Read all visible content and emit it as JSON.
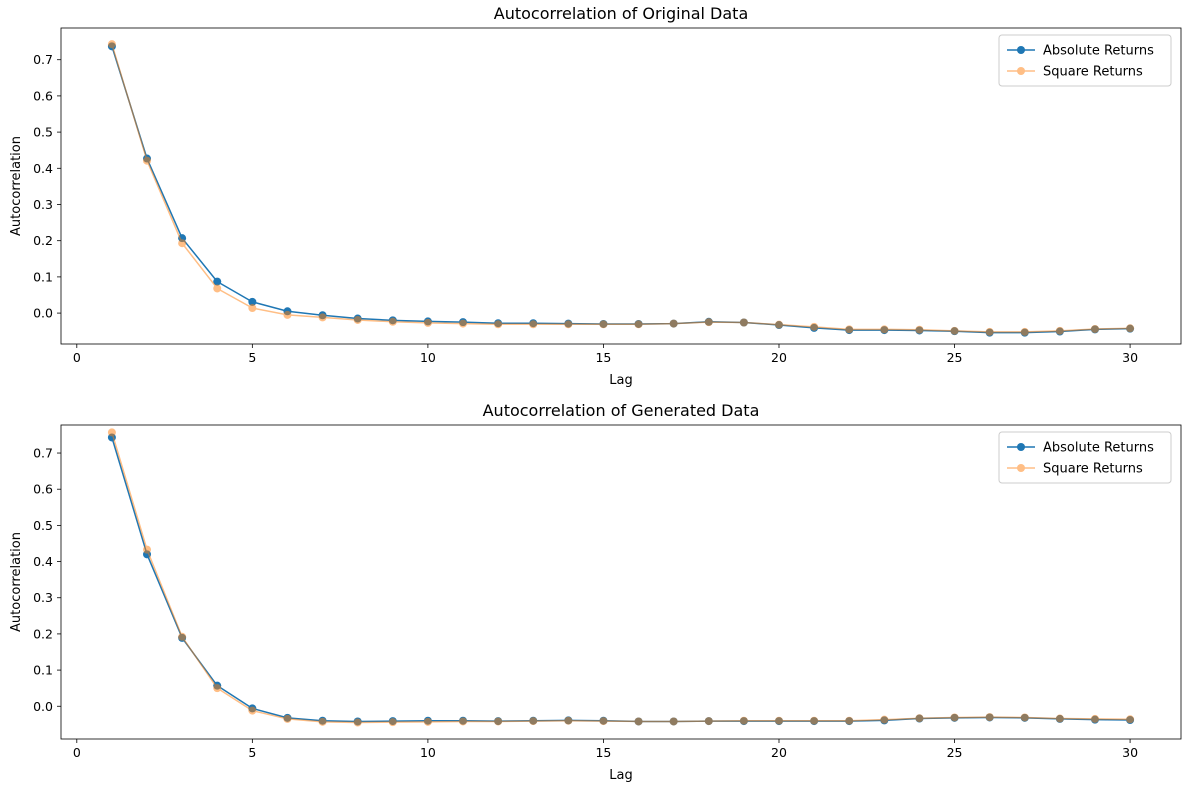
{
  "chart_data": [
    {
      "type": "line",
      "title": "Autocorrelation of Original Data",
      "xlabel": "Lag",
      "ylabel": "Autocorrelation",
      "xlim": [
        -0.45,
        31.45
      ],
      "ylim": [
        -0.0854,
        0.7876
      ],
      "xticks": [
        0,
        5,
        10,
        15,
        20,
        25,
        30
      ],
      "yticks": [
        0.0,
        0.1,
        0.2,
        0.3,
        0.4,
        0.5,
        0.6,
        0.7
      ],
      "ytick_labels": [
        "0.0",
        "0.1",
        "0.2",
        "0.3",
        "0.4",
        "0.5",
        "0.6",
        "0.7"
      ],
      "grid": false,
      "legend": "top-right",
      "x": [
        1,
        2,
        3,
        4,
        5,
        6,
        7,
        8,
        9,
        10,
        11,
        12,
        13,
        14,
        15,
        16,
        17,
        18,
        19,
        20,
        21,
        22,
        23,
        24,
        25,
        26,
        27,
        28,
        29,
        30
      ],
      "series": [
        {
          "name": "Absolute Returns",
          "color": "#1f77b4",
          "alpha": 1.0,
          "values": [
            0.737,
            0.427,
            0.207,
            0.087,
            0.031,
            0.005,
            -0.006,
            -0.015,
            -0.02,
            -0.023,
            -0.025,
            -0.028,
            -0.028,
            -0.029,
            -0.03,
            -0.03,
            -0.029,
            -0.024,
            -0.026,
            -0.033,
            -0.041,
            -0.047,
            -0.047,
            -0.048,
            -0.05,
            -0.054,
            -0.054,
            -0.051,
            -0.045,
            -0.043
          ]
        },
        {
          "name": "Square Returns",
          "color": "#ff7f0e",
          "alpha": 0.5,
          "values": [
            0.743,
            0.421,
            0.193,
            0.068,
            0.014,
            -0.005,
            -0.012,
            -0.019,
            -0.024,
            -0.027,
            -0.029,
            -0.031,
            -0.031,
            -0.031,
            -0.031,
            -0.031,
            -0.029,
            -0.025,
            -0.026,
            -0.032,
            -0.038,
            -0.045,
            -0.045,
            -0.046,
            -0.049,
            -0.052,
            -0.052,
            -0.049,
            -0.044,
            -0.042
          ]
        }
      ]
    },
    {
      "type": "line",
      "title": "Autocorrelation of Generated Data",
      "xlabel": "Lag",
      "ylabel": "Autocorrelation",
      "xlim": [
        -0.45,
        31.45
      ],
      "ylim": [
        -0.0905,
        0.7775
      ],
      "xticks": [
        0,
        5,
        10,
        15,
        20,
        25,
        30
      ],
      "yticks": [
        0.0,
        0.1,
        0.2,
        0.3,
        0.4,
        0.5,
        0.6,
        0.7
      ],
      "ytick_labels": [
        "0.0",
        "0.1",
        "0.2",
        "0.3",
        "0.4",
        "0.5",
        "0.6",
        "0.7"
      ],
      "grid": false,
      "legend": "top-right",
      "x": [
        1,
        2,
        3,
        4,
        5,
        6,
        7,
        8,
        9,
        10,
        11,
        12,
        13,
        14,
        15,
        16,
        17,
        18,
        19,
        20,
        21,
        22,
        23,
        24,
        25,
        26,
        27,
        28,
        29,
        30
      ],
      "series": [
        {
          "name": "Absolute Returns",
          "color": "#1f77b4",
          "alpha": 1.0,
          "values": [
            0.743,
            0.42,
            0.189,
            0.057,
            -0.006,
            -0.032,
            -0.04,
            -0.042,
            -0.041,
            -0.04,
            -0.04,
            -0.041,
            -0.04,
            -0.039,
            -0.04,
            -0.042,
            -0.042,
            -0.041,
            -0.041,
            -0.041,
            -0.041,
            -0.041,
            -0.039,
            -0.034,
            -0.032,
            -0.031,
            -0.032,
            -0.035,
            -0.037,
            -0.038
          ]
        },
        {
          "name": "Square Returns",
          "color": "#ff7f0e",
          "alpha": 0.5,
          "values": [
            0.757,
            0.433,
            0.192,
            0.05,
            -0.012,
            -0.035,
            -0.043,
            -0.045,
            -0.044,
            -0.043,
            -0.042,
            -0.042,
            -0.041,
            -0.04,
            -0.041,
            -0.042,
            -0.042,
            -0.041,
            -0.04,
            -0.04,
            -0.04,
            -0.04,
            -0.037,
            -0.033,
            -0.031,
            -0.03,
            -0.031,
            -0.034,
            -0.035,
            -0.036
          ]
        }
      ]
    }
  ]
}
